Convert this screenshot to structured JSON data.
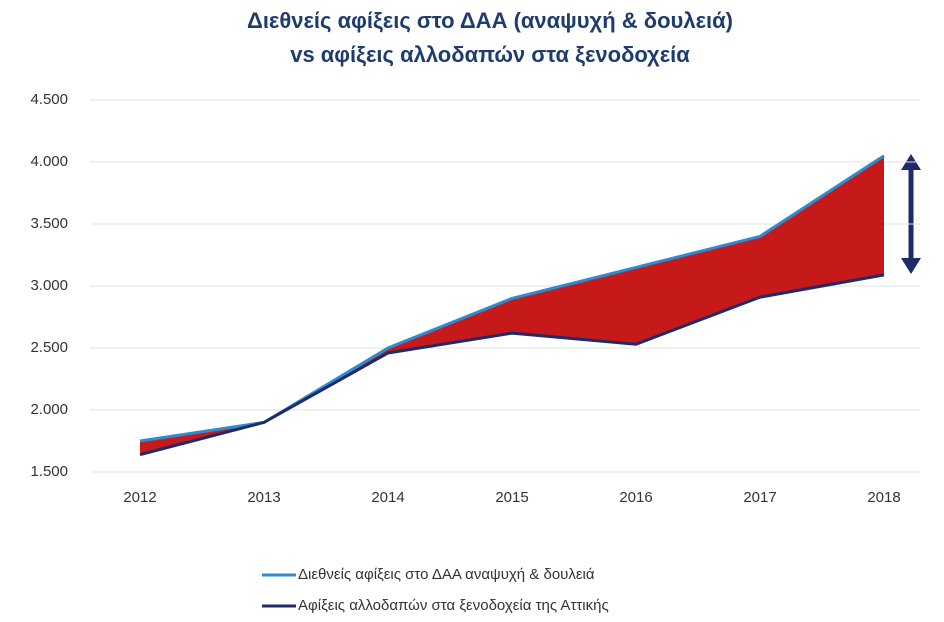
{
  "chart_data": {
    "type": "line",
    "title": "Διεθνείς αφίξεις στο ΔΑΑ (αναψυχή & δουλειά)",
    "subtitle": "vs αφίξεις αλλοδαπών στα ξενοδοχεία",
    "categories": [
      "2012",
      "2013",
      "2014",
      "2015",
      "2016",
      "2017",
      "2018"
    ],
    "series": [
      {
        "name": "Διεθνείς αφίξεις στο ΔΑΑ αναψυχή & δουλειά",
        "color": "#2e8bd0",
        "values": [
          1750,
          1900,
          2500,
          2900,
          3150,
          3400,
          4050
        ]
      },
      {
        "name": "Αφίξεις αλλοδαπών στα ξενοδοχεία της Αττικής",
        "color": "#1f2a6b",
        "values": [
          1640,
          1900,
          2460,
          2620,
          2530,
          2910,
          3090
        ]
      }
    ],
    "fill_color": "#c00000",
    "ylim": [
      1500,
      4500
    ],
    "yticks": [
      {
        "value": 1500,
        "label": "1.500"
      },
      {
        "value": 2000,
        "label": "2.000"
      },
      {
        "value": 2500,
        "label": "2.500"
      },
      {
        "value": 3000,
        "label": "3.000"
      },
      {
        "value": 3500,
        "label": "3.500"
      },
      {
        "value": 4000,
        "label": "4.000"
      },
      {
        "value": 4500,
        "label": "4.500"
      }
    ],
    "grid": true
  }
}
